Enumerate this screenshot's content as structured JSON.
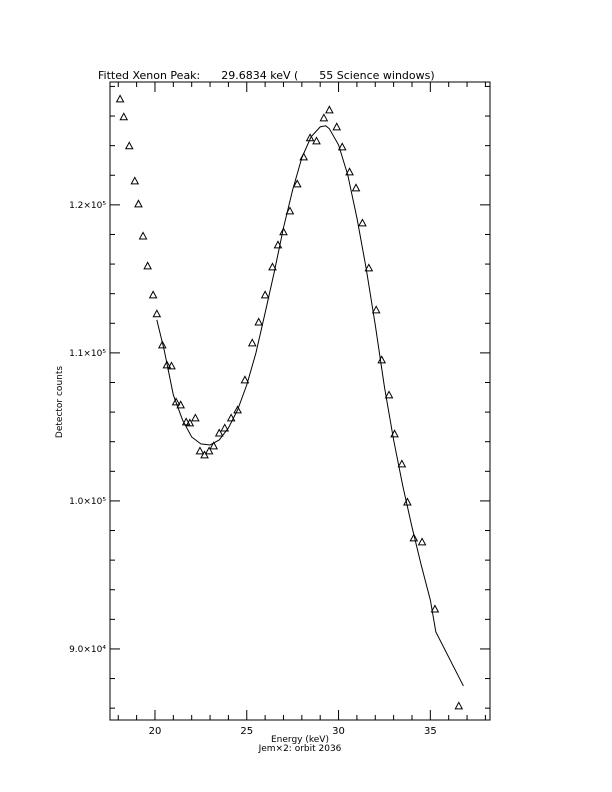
{
  "chart_data": {
    "type": "scatter",
    "title": "Fitted Xenon Peak:      29.6834 keV (      55 Science windows)",
    "x_label": "Energy (keV)",
    "subtitle": "Jem×2: orbit 2036",
    "y_label": "Detector counts",
    "xlim": [
      17.55,
      38.25
    ],
    "ylim": [
      85200,
      128300
    ],
    "xticks": [
      20,
      25,
      30,
      35
    ],
    "xminorticks": [
      18,
      19,
      21,
      22,
      23,
      24,
      26,
      27,
      28,
      29,
      31,
      32,
      33,
      34,
      36,
      37,
      38
    ],
    "yticks": [
      {
        "value": 90000,
        "label": "9.0×10⁴"
      },
      {
        "value": 100000,
        "label": "1.0×10⁵"
      },
      {
        "value": 110000,
        "label": "1.1×10⁵"
      },
      {
        "value": 120000,
        "label": "1.2×10⁵"
      }
    ],
    "yminorticks": [
      86000,
      88000,
      92000,
      94000,
      96000,
      98000,
      102000,
      104000,
      106000,
      108000,
      112000,
      114000,
      116000,
      118000,
      122000,
      124000,
      126000,
      128000
    ],
    "series": [
      {
        "type": "scatter",
        "color": "#000000",
        "x": [
          18.1,
          18.3,
          18.6,
          18.9,
          19.1,
          19.35,
          19.6,
          19.9,
          20.1,
          20.4,
          20.65,
          20.9,
          21.15,
          21.4,
          21.7,
          21.9,
          22.2,
          22.45,
          22.7,
          22.95,
          23.2,
          23.5,
          23.8,
          24.15,
          24.5,
          24.9,
          25.3,
          25.65,
          26.0,
          26.4,
          26.7,
          27.0,
          27.35,
          27.75,
          28.1,
          28.45,
          28.8,
          29.2,
          29.5,
          29.9,
          30.2,
          30.6,
          30.95,
          31.3,
          31.65,
          32.05,
          32.35,
          32.75,
          33.05,
          33.45,
          33.75,
          34.1,
          34.55,
          35.25,
          36.55
        ],
        "values": [
          127160,
          125950,
          123990,
          121620,
          120070,
          117900,
          115880,
          113920,
          112640,
          110540,
          109190,
          109120,
          106690,
          106490,
          105340,
          105270,
          105610,
          103380,
          103110,
          103380,
          103720,
          104590,
          104930,
          105610,
          106150,
          108180,
          110680,
          112090,
          113920,
          115810,
          117300,
          118180,
          119590,
          121420,
          123240,
          124530,
          124320,
          125880,
          126420,
          125270,
          123920,
          122230,
          121150,
          118780,
          115740,
          112910,
          109530,
          107160,
          104530,
          102500,
          99930,
          97500,
          97230,
          92700,
          86150
        ]
      },
      {
        "type": "line",
        "color": "#000000",
        "x": [
          20.1,
          20.5,
          21,
          21.5,
          22,
          22.5,
          23,
          23.5,
          24,
          24.5,
          25,
          25.5,
          26,
          26.5,
          27,
          27.5,
          28,
          28.5,
          29,
          29.3,
          29.5,
          30,
          30.5,
          31,
          31.5,
          32,
          32.5,
          33,
          33.5,
          34,
          34.5,
          35,
          35.3,
          36.8
        ],
        "values": [
          112230,
          110200,
          107160,
          105470,
          104320,
          103850,
          103780,
          104120,
          104930,
          106150,
          107840,
          110000,
          112700,
          115470,
          118450,
          121010,
          123180,
          124590,
          125270,
          125340,
          125140,
          124050,
          122030,
          119120,
          115740,
          111890,
          107700,
          104120,
          101010,
          98240,
          95680,
          93310,
          91150,
          87500
        ]
      }
    ]
  }
}
